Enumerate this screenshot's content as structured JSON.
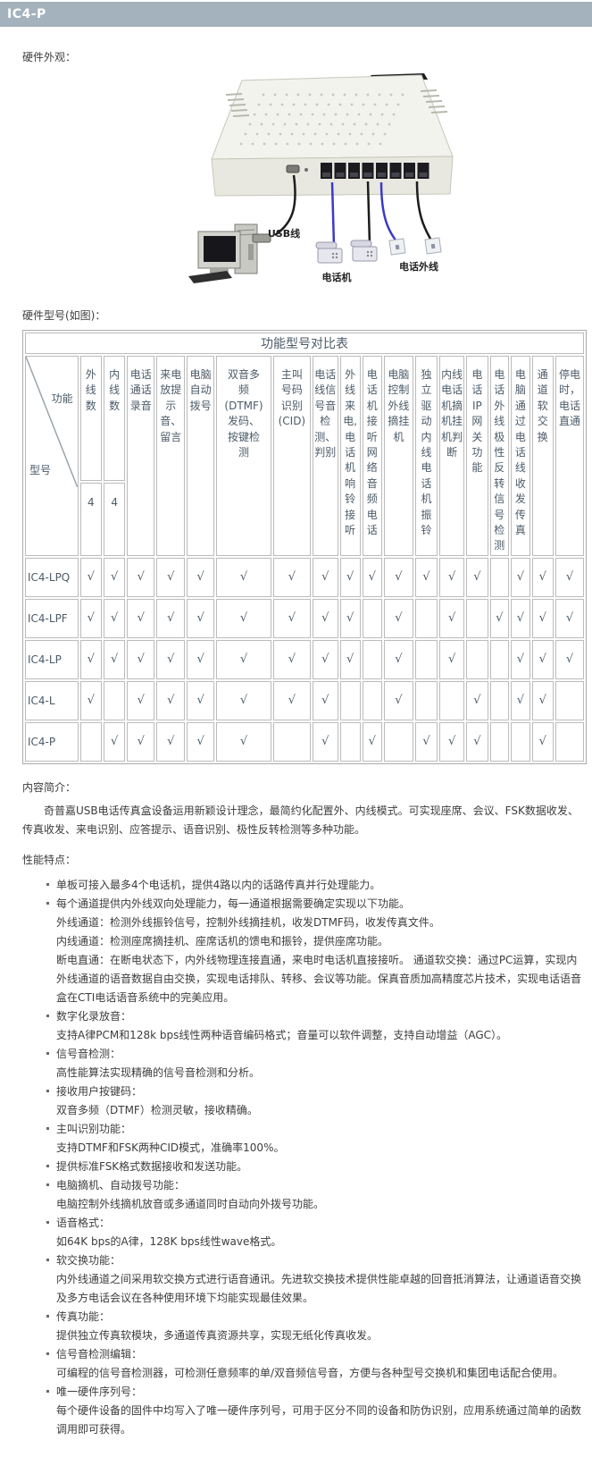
{
  "page": {
    "header_title": "IC4-P",
    "sections": {
      "hardware_appearance": "硬件外观：",
      "hardware_model": "硬件型号(如图)：",
      "intro_label": "内容简介：",
      "features_label": "性能特点："
    },
    "intro_text": "奇普嘉USB电话传真盒设备运用新颖设计理念，最简约化配置外、内线模式。可实现座席、会议、FSK数据收发、传真收发、来电识别、应答提示、语音识别、极性反转检测等多种功能。"
  },
  "diagram": {
    "labels": {
      "usb_cable": "USB线",
      "phone": "电话机",
      "outside_line": "电话外线"
    }
  },
  "colors": {
    "header_bar": "#a4b2bd",
    "table_title_bg": "#e9f4f9",
    "table_title_text": "#1b4c74",
    "cable_blue": "#3a3ac8",
    "cable_black": "#1c1c1c"
  },
  "table": {
    "title": "功能型号对比表",
    "corner_top": "功能",
    "corner_bottom": "型号",
    "check_glyph": "√",
    "columns": [
      {
        "label": "外线数",
        "sub": "4"
      },
      {
        "label": "内线数",
        "sub": "4"
      },
      {
        "label": "电话通话录音"
      },
      {
        "label": "来电放提示音、留言"
      },
      {
        "label": "电脑自动拨号"
      },
      {
        "label": "双音多频(DTMF)发码、按键检测"
      },
      {
        "label": "主叫号码识别(CID)"
      },
      {
        "label": "电话线信号音检测、判别"
      },
      {
        "label": "外线来电,电话机响铃接听"
      },
      {
        "label": "电话机接听网络音频电话"
      },
      {
        "label": "电脑控制外线摘挂机"
      },
      {
        "label": "独立驱动内线电话机振铃"
      },
      {
        "label": "内线电话机摘机挂机判断"
      },
      {
        "label": "电话IP网关功能"
      },
      {
        "label": "电话外线极性反转信号检测"
      },
      {
        "label": "电脑通过电话线收发传真"
      },
      {
        "label": "通道软交换"
      },
      {
        "label": "停电时，电话直通"
      }
    ],
    "rows": [
      {
        "model": "IC4-LPQ",
        "checks": [
          1,
          1,
          1,
          1,
          1,
          1,
          1,
          1,
          1,
          1,
          1,
          1,
          1,
          1,
          0,
          1,
          1,
          1
        ]
      },
      {
        "model": "IC4-LPF",
        "checks": [
          1,
          1,
          1,
          1,
          1,
          1,
          1,
          1,
          1,
          0,
          1,
          0,
          1,
          0,
          1,
          1,
          1,
          1
        ]
      },
      {
        "model": "IC4-LP",
        "checks": [
          1,
          1,
          1,
          1,
          1,
          1,
          1,
          1,
          1,
          0,
          1,
          0,
          1,
          0,
          0,
          1,
          1,
          1
        ]
      },
      {
        "model": "IC4-L",
        "checks": [
          1,
          0,
          1,
          1,
          1,
          1,
          1,
          1,
          0,
          0,
          1,
          0,
          0,
          1,
          0,
          1,
          1,
          0
        ]
      },
      {
        "model": "IC4-P",
        "checks": [
          0,
          1,
          1,
          1,
          1,
          1,
          0,
          1,
          0,
          1,
          0,
          1,
          1,
          1,
          0,
          0,
          1,
          0
        ]
      }
    ]
  },
  "features": [
    {
      "head": "单板可接入最多4个电话机，提供4路以内的话路传真并行处理能力。",
      "lines": []
    },
    {
      "head": "每个通道提供内外线双向处理能力，每一通道根据需要确定实现以下功能。",
      "lines": [
        "外线通道：检测外线振铃信号，控制外线摘挂机，收发DTMF码，收发传真文件。",
        "内线通道：检测座席摘挂机、座席话机的馈电和振铃，提供座席功能。",
        "断电直通：在断电状态下，内外线物理连接直通，来电时电话机直接接听。 通道软交换：通过PC运算，实现内外线通道的语音数据自由交换，实现电话排队、转移、会议等功能。保真音质加高精度芯片技术，实现电话语音盒在CTI电话语音系统中的完美应用。"
      ]
    },
    {
      "head": "数字化录放音：",
      "lines": [
        "支持A律PCM和128k bps线性两种语音编码格式；音量可以软件调整，支持自动增益（AGC）。"
      ]
    },
    {
      "head": "信号音检测：",
      "lines": [
        "高性能算法实现精确的信号音检测和分析。"
      ]
    },
    {
      "head": "接收用户按键码：",
      "lines": [
        "双音多频（DTMF）检测灵敏，接收精确。"
      ]
    },
    {
      "head": "主叫识别功能：",
      "lines": [
        "支持DTMF和FSK两种CID模式，准确率100%。"
      ]
    },
    {
      "head": "提供标准FSK格式数据接收和发送功能。",
      "lines": []
    },
    {
      "head": "电脑摘机、自动拨号功能：",
      "lines": [
        "电脑控制外线摘机放音或多通道同时自动向外拨号功能。"
      ]
    },
    {
      "head": "语音格式：",
      "lines": [
        "如64K bps的A律，128K bps线性wave格式。"
      ]
    },
    {
      "head": "软交换功能：",
      "lines": [
        "内外线通道之间采用软交换方式进行语音通讯。先进软交换技术提供性能卓越的回音抵消算法，让通道语音交换及多方电话会议在各种使用环境下均能实现最佳效果。"
      ]
    },
    {
      "head": "传真功能：",
      "lines": [
        "提供独立传真软模块，多通道传真资源共享，实现无纸化传真收发。"
      ]
    },
    {
      "head": "信号音检测编辑：",
      "lines": [
        "可编程的信号音检测器，可检测任意频率的单/双音频信号音，方便与各种型号交换机和集团电话配合使用。"
      ]
    },
    {
      "head": "唯一硬件序列号：",
      "lines": [
        "每个硬件设备的固件中均写入了唯一硬件序列号，可用于区分不同的设备和防伪识别，应用系统通过简单的函数调用即可获得。"
      ]
    }
  ]
}
